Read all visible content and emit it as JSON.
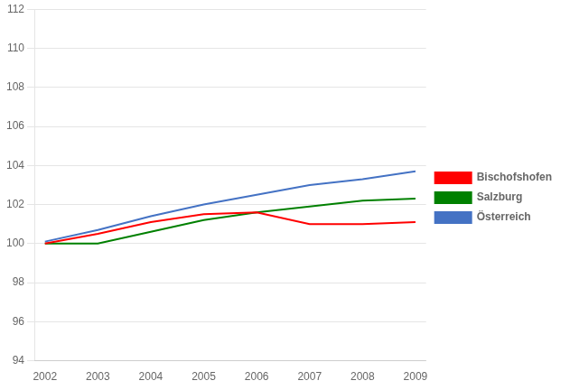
{
  "chart_data": {
    "type": "line",
    "x": [
      2002,
      2003,
      2004,
      2005,
      2006,
      2007,
      2008,
      2009
    ],
    "series": [
      {
        "name": "Bischofshofen",
        "color": "#ff0000",
        "values": [
          100.0,
          100.5,
          101.1,
          101.5,
          101.6,
          101.0,
          101.0,
          101.1
        ]
      },
      {
        "name": "Salzburg",
        "color": "#008000",
        "values": [
          100.0,
          100.0,
          100.6,
          101.2,
          101.6,
          101.9,
          102.2,
          102.3
        ]
      },
      {
        "name": "Österreich",
        "color": "#4472c4",
        "values": [
          100.1,
          100.7,
          101.4,
          102.0,
          102.5,
          103.0,
          103.3,
          103.7
        ]
      }
    ],
    "xlim": [
      2001.8,
      2009.2
    ],
    "xticks": [
      2002,
      2003,
      2004,
      2005,
      2006,
      2007,
      2008,
      2009
    ],
    "ylim": [
      94,
      112
    ],
    "yticks": [
      94,
      96,
      98,
      100,
      102,
      104,
      106,
      108,
      110,
      112
    ],
    "grid": "y",
    "legend": "right"
  }
}
